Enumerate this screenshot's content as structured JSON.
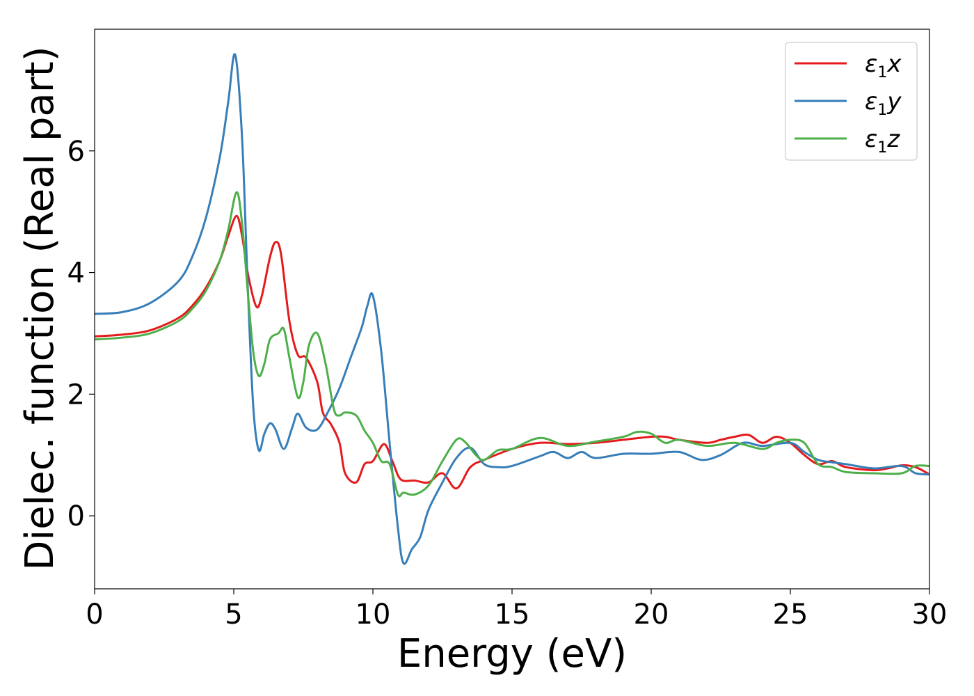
{
  "chart_data": {
    "type": "line",
    "xlabel": "Energy (eV)",
    "ylabel": "Dielec. function (Real part)",
    "xlim": [
      0,
      30
    ],
    "ylim": [
      -1.2,
      8.0
    ],
    "xticks": [
      0,
      5,
      10,
      15,
      20,
      25,
      30
    ],
    "yticks": [
      0,
      2,
      4,
      6
    ],
    "grid": false,
    "legend_position": "top-right",
    "series": [
      {
        "name": "ε1x",
        "label_main": "ε",
        "label_sub": "1",
        "label_var": "x",
        "color": "#e41a1c",
        "x": [
          0,
          1,
          2,
          3,
          3.5,
          4,
          4.5,
          4.8,
          5.1,
          5.3,
          5.5,
          5.8,
          6.0,
          6.3,
          6.5,
          6.7,
          7.0,
          7.3,
          7.6,
          8.0,
          8.2,
          8.5,
          8.8,
          9.0,
          9.4,
          9.7,
          10.0,
          10.4,
          10.7,
          11.0,
          11.5,
          12.0,
          12.5,
          13.0,
          13.5,
          14.0,
          15.0,
          16.0,
          17.0,
          18.0,
          19.0,
          20.0,
          20.5,
          21.0,
          22.0,
          22.5,
          23.0,
          23.5,
          24.0,
          24.5,
          25.0,
          25.5,
          26.0,
          26.5,
          27.0,
          28.0,
          28.5,
          29.0,
          29.5,
          30.0
        ],
        "y": [
          2.95,
          2.98,
          3.05,
          3.25,
          3.45,
          3.75,
          4.2,
          4.6,
          4.93,
          4.6,
          4.0,
          3.45,
          3.6,
          4.25,
          4.5,
          4.3,
          3.2,
          2.65,
          2.6,
          2.2,
          1.7,
          1.5,
          1.2,
          0.7,
          0.55,
          0.85,
          0.9,
          1.18,
          0.9,
          0.6,
          0.58,
          0.55,
          0.7,
          0.45,
          0.8,
          0.92,
          1.1,
          1.2,
          1.18,
          1.2,
          1.25,
          1.3,
          1.3,
          1.25,
          1.2,
          1.25,
          1.3,
          1.33,
          1.2,
          1.3,
          1.2,
          1.0,
          0.85,
          0.9,
          0.8,
          0.75,
          0.78,
          0.83,
          0.8,
          0.68
        ]
      },
      {
        "name": "ε1y",
        "label_main": "ε",
        "label_sub": "1",
        "label_var": "y",
        "color": "#377eb8",
        "x": [
          0,
          1,
          2,
          3,
          3.5,
          4,
          4.5,
          4.8,
          5.05,
          5.3,
          5.5,
          5.7,
          5.9,
          6.1,
          6.3,
          6.5,
          6.8,
          7.1,
          7.3,
          7.6,
          8.0,
          8.4,
          8.8,
          9.2,
          9.6,
          9.8,
          10.0,
          10.3,
          10.6,
          10.9,
          11.1,
          11.4,
          11.7,
          12.0,
          12.5,
          13.0,
          13.5,
          14.0,
          14.5,
          15.0,
          16.0,
          16.5,
          17.0,
          17.5,
          18.0,
          19.0,
          20.0,
          21.0,
          21.8,
          22.5,
          23.3,
          24.0,
          25.0,
          25.5,
          26.0,
          26.5,
          27.0,
          28.0,
          29.0,
          29.5,
          30.0
        ],
        "y": [
          3.32,
          3.35,
          3.5,
          3.85,
          4.25,
          4.9,
          5.9,
          6.8,
          7.58,
          6.2,
          3.8,
          1.8,
          1.08,
          1.35,
          1.52,
          1.42,
          1.1,
          1.45,
          1.68,
          1.45,
          1.42,
          1.72,
          2.1,
          2.6,
          3.1,
          3.45,
          3.62,
          2.7,
          1.2,
          -0.2,
          -0.78,
          -0.55,
          -0.35,
          0.1,
          0.55,
          0.95,
          1.12,
          0.85,
          0.8,
          0.82,
          0.98,
          1.05,
          0.95,
          1.05,
          0.95,
          1.02,
          1.02,
          1.05,
          0.92,
          1.0,
          1.2,
          1.15,
          1.2,
          1.05,
          0.92,
          0.88,
          0.85,
          0.78,
          0.82,
          0.7,
          0.68
        ]
      },
      {
        "name": "ε1z",
        "label_main": "ε",
        "label_sub": "1",
        "label_var": "z",
        "color": "#4daf4a",
        "x": [
          0,
          1,
          2,
          3,
          3.5,
          4,
          4.5,
          4.8,
          5.1,
          5.3,
          5.5,
          5.7,
          5.9,
          6.1,
          6.3,
          6.6,
          6.8,
          7.0,
          7.3,
          7.5,
          7.7,
          8.0,
          8.3,
          8.6,
          8.8,
          9.0,
          9.4,
          9.7,
          10.0,
          10.3,
          10.6,
          10.9,
          11.1,
          11.5,
          12.0,
          12.5,
          13.0,
          13.3,
          13.7,
          14.0,
          14.5,
          15.0,
          16.0,
          17.0,
          18.0,
          19.0,
          19.5,
          20.0,
          20.5,
          21.0,
          22.0,
          23.0,
          24.0,
          24.5,
          25.0,
          25.5,
          26.0,
          26.5,
          27.0,
          28.0,
          29.0,
          29.5,
          30.0
        ],
        "y": [
          2.9,
          2.93,
          3.0,
          3.2,
          3.4,
          3.7,
          4.2,
          4.7,
          5.32,
          4.8,
          3.7,
          2.7,
          2.3,
          2.5,
          2.9,
          3.0,
          3.07,
          2.6,
          1.95,
          2.2,
          2.8,
          3.0,
          2.5,
          1.75,
          1.65,
          1.7,
          1.65,
          1.4,
          1.2,
          0.9,
          0.85,
          0.35,
          0.38,
          0.35,
          0.5,
          0.9,
          1.25,
          1.22,
          1.0,
          0.92,
          1.08,
          1.1,
          1.28,
          1.15,
          1.22,
          1.3,
          1.38,
          1.35,
          1.2,
          1.25,
          1.15,
          1.2,
          1.1,
          1.2,
          1.25,
          1.2,
          0.85,
          0.8,
          0.72,
          0.7,
          0.7,
          0.82,
          0.82
        ]
      }
    ]
  }
}
